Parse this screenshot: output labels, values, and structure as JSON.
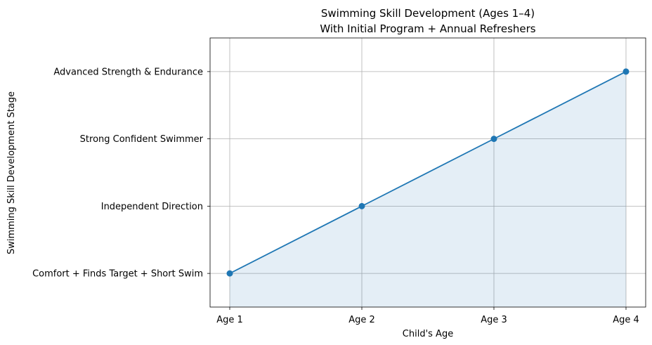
{
  "chart_data": {
    "type": "area",
    "title": "Swimming Skill Development (Ages 1–4)",
    "subtitle": "With Initial Program + Annual Refreshers",
    "xlabel": "Child's Age",
    "ylabel": "Swimming Skill Development Stage",
    "categories": [
      "Age 1",
      "Age 2",
      "Age 3",
      "Age 4"
    ],
    "y_tick_labels": [
      "Comfort + Finds Target + Short Swim",
      "Independent Direction",
      "Strong Confident Swimmer",
      "Advanced Strength & Endurance"
    ],
    "values": [
      1,
      2,
      3,
      4
    ],
    "ylim": [
      0.5,
      4.5
    ],
    "grid": true,
    "markers": true,
    "line_color": "#1f77b4",
    "fill_color": "#1f77b4",
    "fill_opacity": 0.12
  }
}
